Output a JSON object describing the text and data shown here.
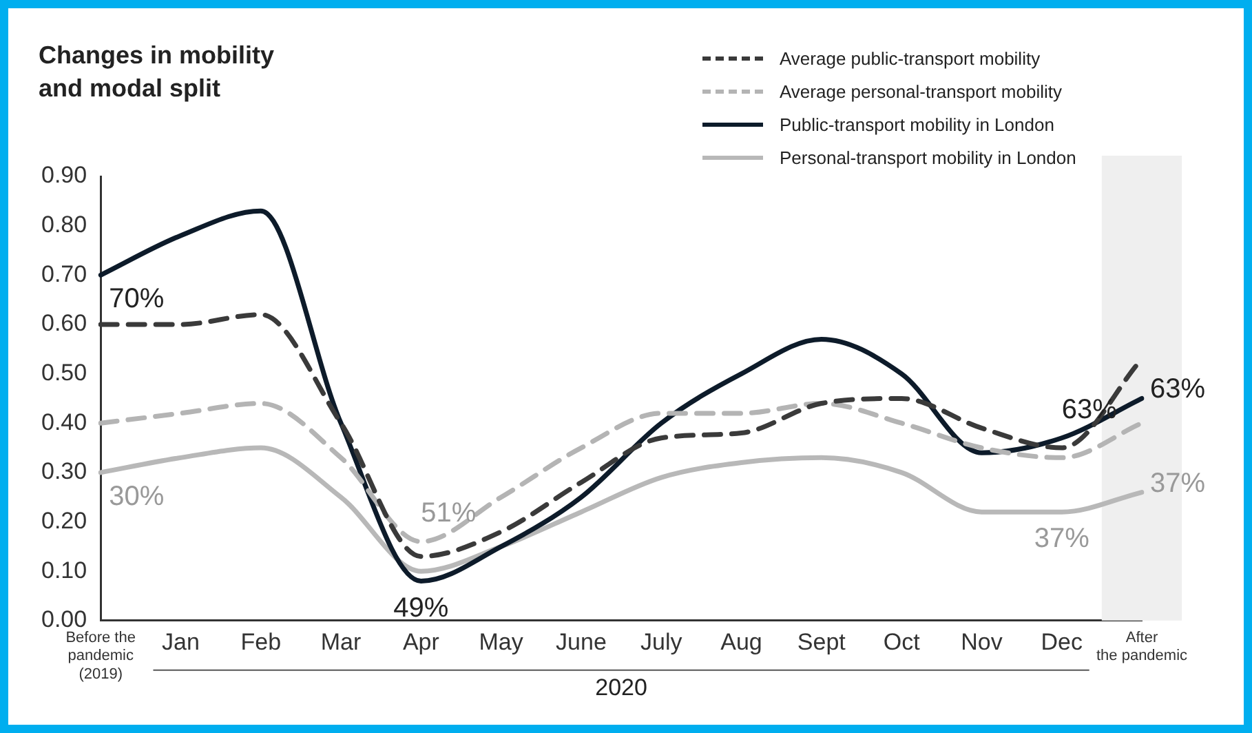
{
  "chart_data": {
    "type": "line",
    "title": "Changes in mobility and modal split",
    "xlabel": "2020",
    "categories": [
      "Before the\npandemic\n(2019)",
      "Jan",
      "Feb",
      "Mar",
      "Apr",
      "May",
      "June",
      "July",
      "Aug",
      "Sept",
      "Oct",
      "Nov",
      "Dec",
      "After\nthe pandemic"
    ],
    "series": [
      {
        "name": "Average public-transport mobility",
        "color": "#3a3a3a",
        "line_style": "dashed",
        "values": [
          0.6,
          0.6,
          0.62,
          0.4,
          0.13,
          0.18,
          0.28,
          0.37,
          0.38,
          0.44,
          0.45,
          0.39,
          0.35,
          0.53
        ]
      },
      {
        "name": "Average personal-transport mobility",
        "color": "#b4b4b4",
        "line_style": "dashed",
        "values": [
          0.4,
          0.42,
          0.44,
          0.33,
          0.16,
          0.25,
          0.35,
          0.42,
          0.42,
          0.44,
          0.4,
          0.35,
          0.33,
          0.4
        ]
      },
      {
        "name": "Public-transport mobility in London",
        "color": "#0d1b2a",
        "line_style": "solid",
        "values": [
          0.7,
          0.78,
          0.83,
          0.4,
          0.08,
          0.15,
          0.25,
          0.4,
          0.5,
          0.57,
          0.5,
          0.34,
          0.37,
          0.45
        ]
      },
      {
        "name": "Personal-transport mobility in London",
        "color": "#b8b8b8",
        "line_style": "solid",
        "values": [
          0.3,
          0.33,
          0.35,
          0.25,
          0.1,
          0.15,
          0.22,
          0.29,
          0.32,
          0.33,
          0.3,
          0.22,
          0.22,
          0.26
        ]
      }
    ],
    "ylim": [
      0,
      0.9
    ],
    "yticks": [
      {
        "value": 0,
        "label": "0.00"
      },
      {
        "value": 0.1,
        "label": "0.10"
      },
      {
        "value": 0.2,
        "label": "0.20"
      },
      {
        "value": 0.3,
        "label": "0.30"
      },
      {
        "value": 0.4,
        "label": "0.40"
      },
      {
        "value": 0.5,
        "label": "0.50"
      },
      {
        "value": 0.6,
        "label": "0.60"
      },
      {
        "value": 0.7,
        "label": "0.70"
      },
      {
        "value": 0.8,
        "label": "0.80"
      },
      {
        "value": 0.9,
        "label": "0.90"
      }
    ],
    "bands": [
      {
        "axis": "x",
        "from": "After\nthe pandemic",
        "to": "After\nthe pandemic",
        "color": "#efefef"
      }
    ],
    "annotations": [
      {
        "text": "70%",
        "x": "Before the\npandemic\n(2019)",
        "y": 0.7
      },
      {
        "text": "30%",
        "x": "Before the\npandemic\n(2019)",
        "y": 0.3
      },
      {
        "text": "51%",
        "x": "Apr",
        "y": 0.16
      },
      {
        "text": "49%",
        "x": "Apr",
        "y": 0.08
      },
      {
        "text": "63%",
        "x": "Dec",
        "y": 0.37
      },
      {
        "text": "37%",
        "x": "Dec",
        "y": 0.22
      },
      {
        "text": "63%",
        "x": "After\nthe pandemic",
        "y": 0.45
      },
      {
        "text": "37%",
        "x": "After\nthe pandemic",
        "y": 0.26
      }
    ],
    "grid": false,
    "legend": "top right",
    "marker": "none"
  }
}
